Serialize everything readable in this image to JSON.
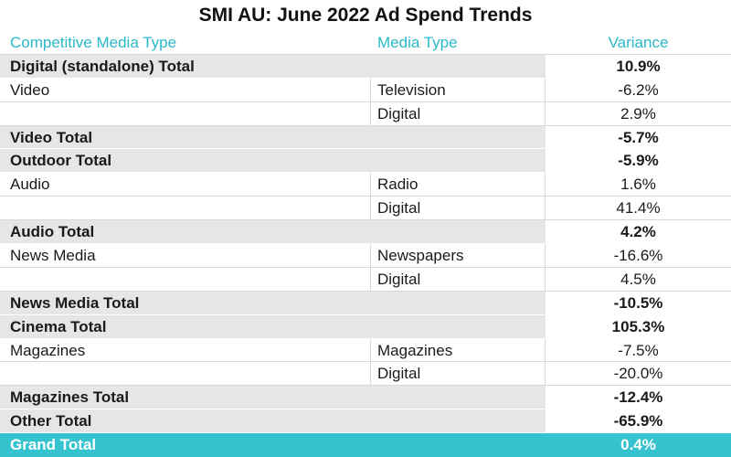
{
  "title": "SMI AU: June 2022 Ad Spend Trends",
  "headers": {
    "competitive_media_type": "Competitive Media Type",
    "media_type": "Media Type",
    "variance": "Variance"
  },
  "rows": [
    {
      "kind": "total",
      "competitive": "Digital (standalone) Total",
      "media": "",
      "variance": "10.9%"
    },
    {
      "kind": "detail",
      "competitive": "Video",
      "media": "Television",
      "variance": "-6.2%"
    },
    {
      "kind": "detail",
      "competitive": "",
      "media": "Digital",
      "variance": "2.9%"
    },
    {
      "kind": "total",
      "competitive": "Video Total",
      "media": "",
      "variance": "-5.7%"
    },
    {
      "kind": "total",
      "competitive": "Outdoor Total",
      "media": "",
      "variance": "-5.9%"
    },
    {
      "kind": "detail",
      "competitive": "Audio",
      "media": "Radio",
      "variance": "1.6%"
    },
    {
      "kind": "detail",
      "competitive": "",
      "media": "Digital",
      "variance": "41.4%"
    },
    {
      "kind": "total",
      "competitive": "Audio Total",
      "media": "",
      "variance": "4.2%"
    },
    {
      "kind": "detail",
      "competitive": "News Media",
      "media": "Newspapers",
      "variance": "-16.6%"
    },
    {
      "kind": "detail",
      "competitive": "",
      "media": "Digital",
      "variance": "4.5%"
    },
    {
      "kind": "total",
      "competitive": "News Media Total",
      "media": "",
      "variance": "-10.5%"
    },
    {
      "kind": "total",
      "competitive": "Cinema Total",
      "media": "",
      "variance": "105.3%"
    },
    {
      "kind": "detail",
      "competitive": "Magazines",
      "media": "Magazines",
      "variance": "-7.5%"
    },
    {
      "kind": "detail",
      "competitive": "",
      "media": "Digital",
      "variance": "-20.0%"
    },
    {
      "kind": "total",
      "competitive": "Magazines Total",
      "media": "",
      "variance": "-12.4%"
    },
    {
      "kind": "total",
      "competitive": "Other Total",
      "media": "",
      "variance": "-65.9%"
    }
  ],
  "grand_total": {
    "label": "Grand Total",
    "variance": "0.4%"
  },
  "colors": {
    "accent": "#35c3cf",
    "header_text": "#2ab9c9",
    "total_row_bg": "#e6e6e6"
  }
}
